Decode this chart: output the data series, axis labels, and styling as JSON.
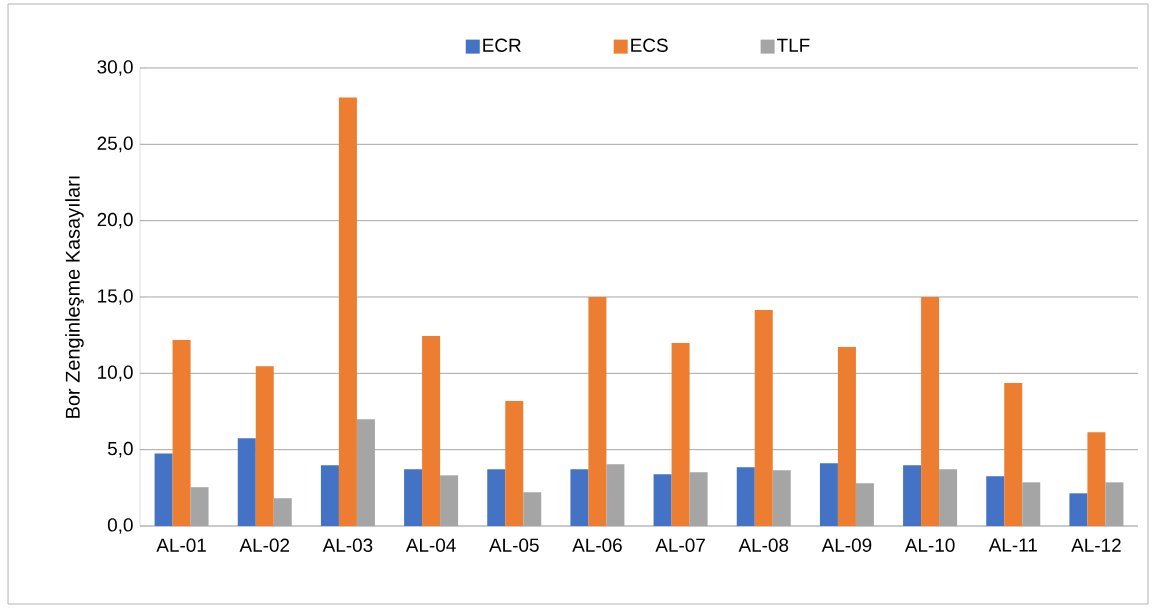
{
  "chart_data": {
    "type": "bar",
    "ylabel": "Bor Zenginleşme Kasayıları",
    "categories": [
      "AL-01",
      "AL-02",
      "AL-03",
      "AL-04",
      "AL-05",
      "AL-06",
      "AL-07",
      "AL-08",
      "AL-09",
      "AL-10",
      "AL-11",
      "AL-12"
    ],
    "series": [
      {
        "name": "ECR",
        "color": "#4472c4",
        "values": [
          4.75,
          5.75,
          3.98,
          3.72,
          3.72,
          3.72,
          3.39,
          3.85,
          4.11,
          3.98,
          3.26,
          2.14
        ]
      },
      {
        "name": "ECS",
        "color": "#ed7d31",
        "values": [
          12.18,
          10.47,
          28.06,
          12.44,
          8.18,
          15.0,
          11.98,
          14.15,
          11.72,
          15.0,
          9.36,
          6.14
        ]
      },
      {
        "name": "TLF",
        "color": "#a5a5a5",
        "values": [
          2.54,
          1.82,
          7.0,
          3.32,
          2.21,
          4.05,
          3.52,
          3.65,
          2.8,
          3.72,
          2.86,
          2.86
        ]
      }
    ],
    "ylim": [
      0,
      30
    ],
    "yticks": [
      {
        "value": 0,
        "label": "0,0"
      },
      {
        "value": 5,
        "label": "5,0"
      },
      {
        "value": 10,
        "label": "10,0"
      },
      {
        "value": 15,
        "label": "15,0"
      },
      {
        "value": 20,
        "label": "20,0"
      },
      {
        "value": 25,
        "label": "25,0"
      },
      {
        "value": 30,
        "label": "30,0"
      }
    ],
    "grid": "y",
    "legend": "top"
  }
}
